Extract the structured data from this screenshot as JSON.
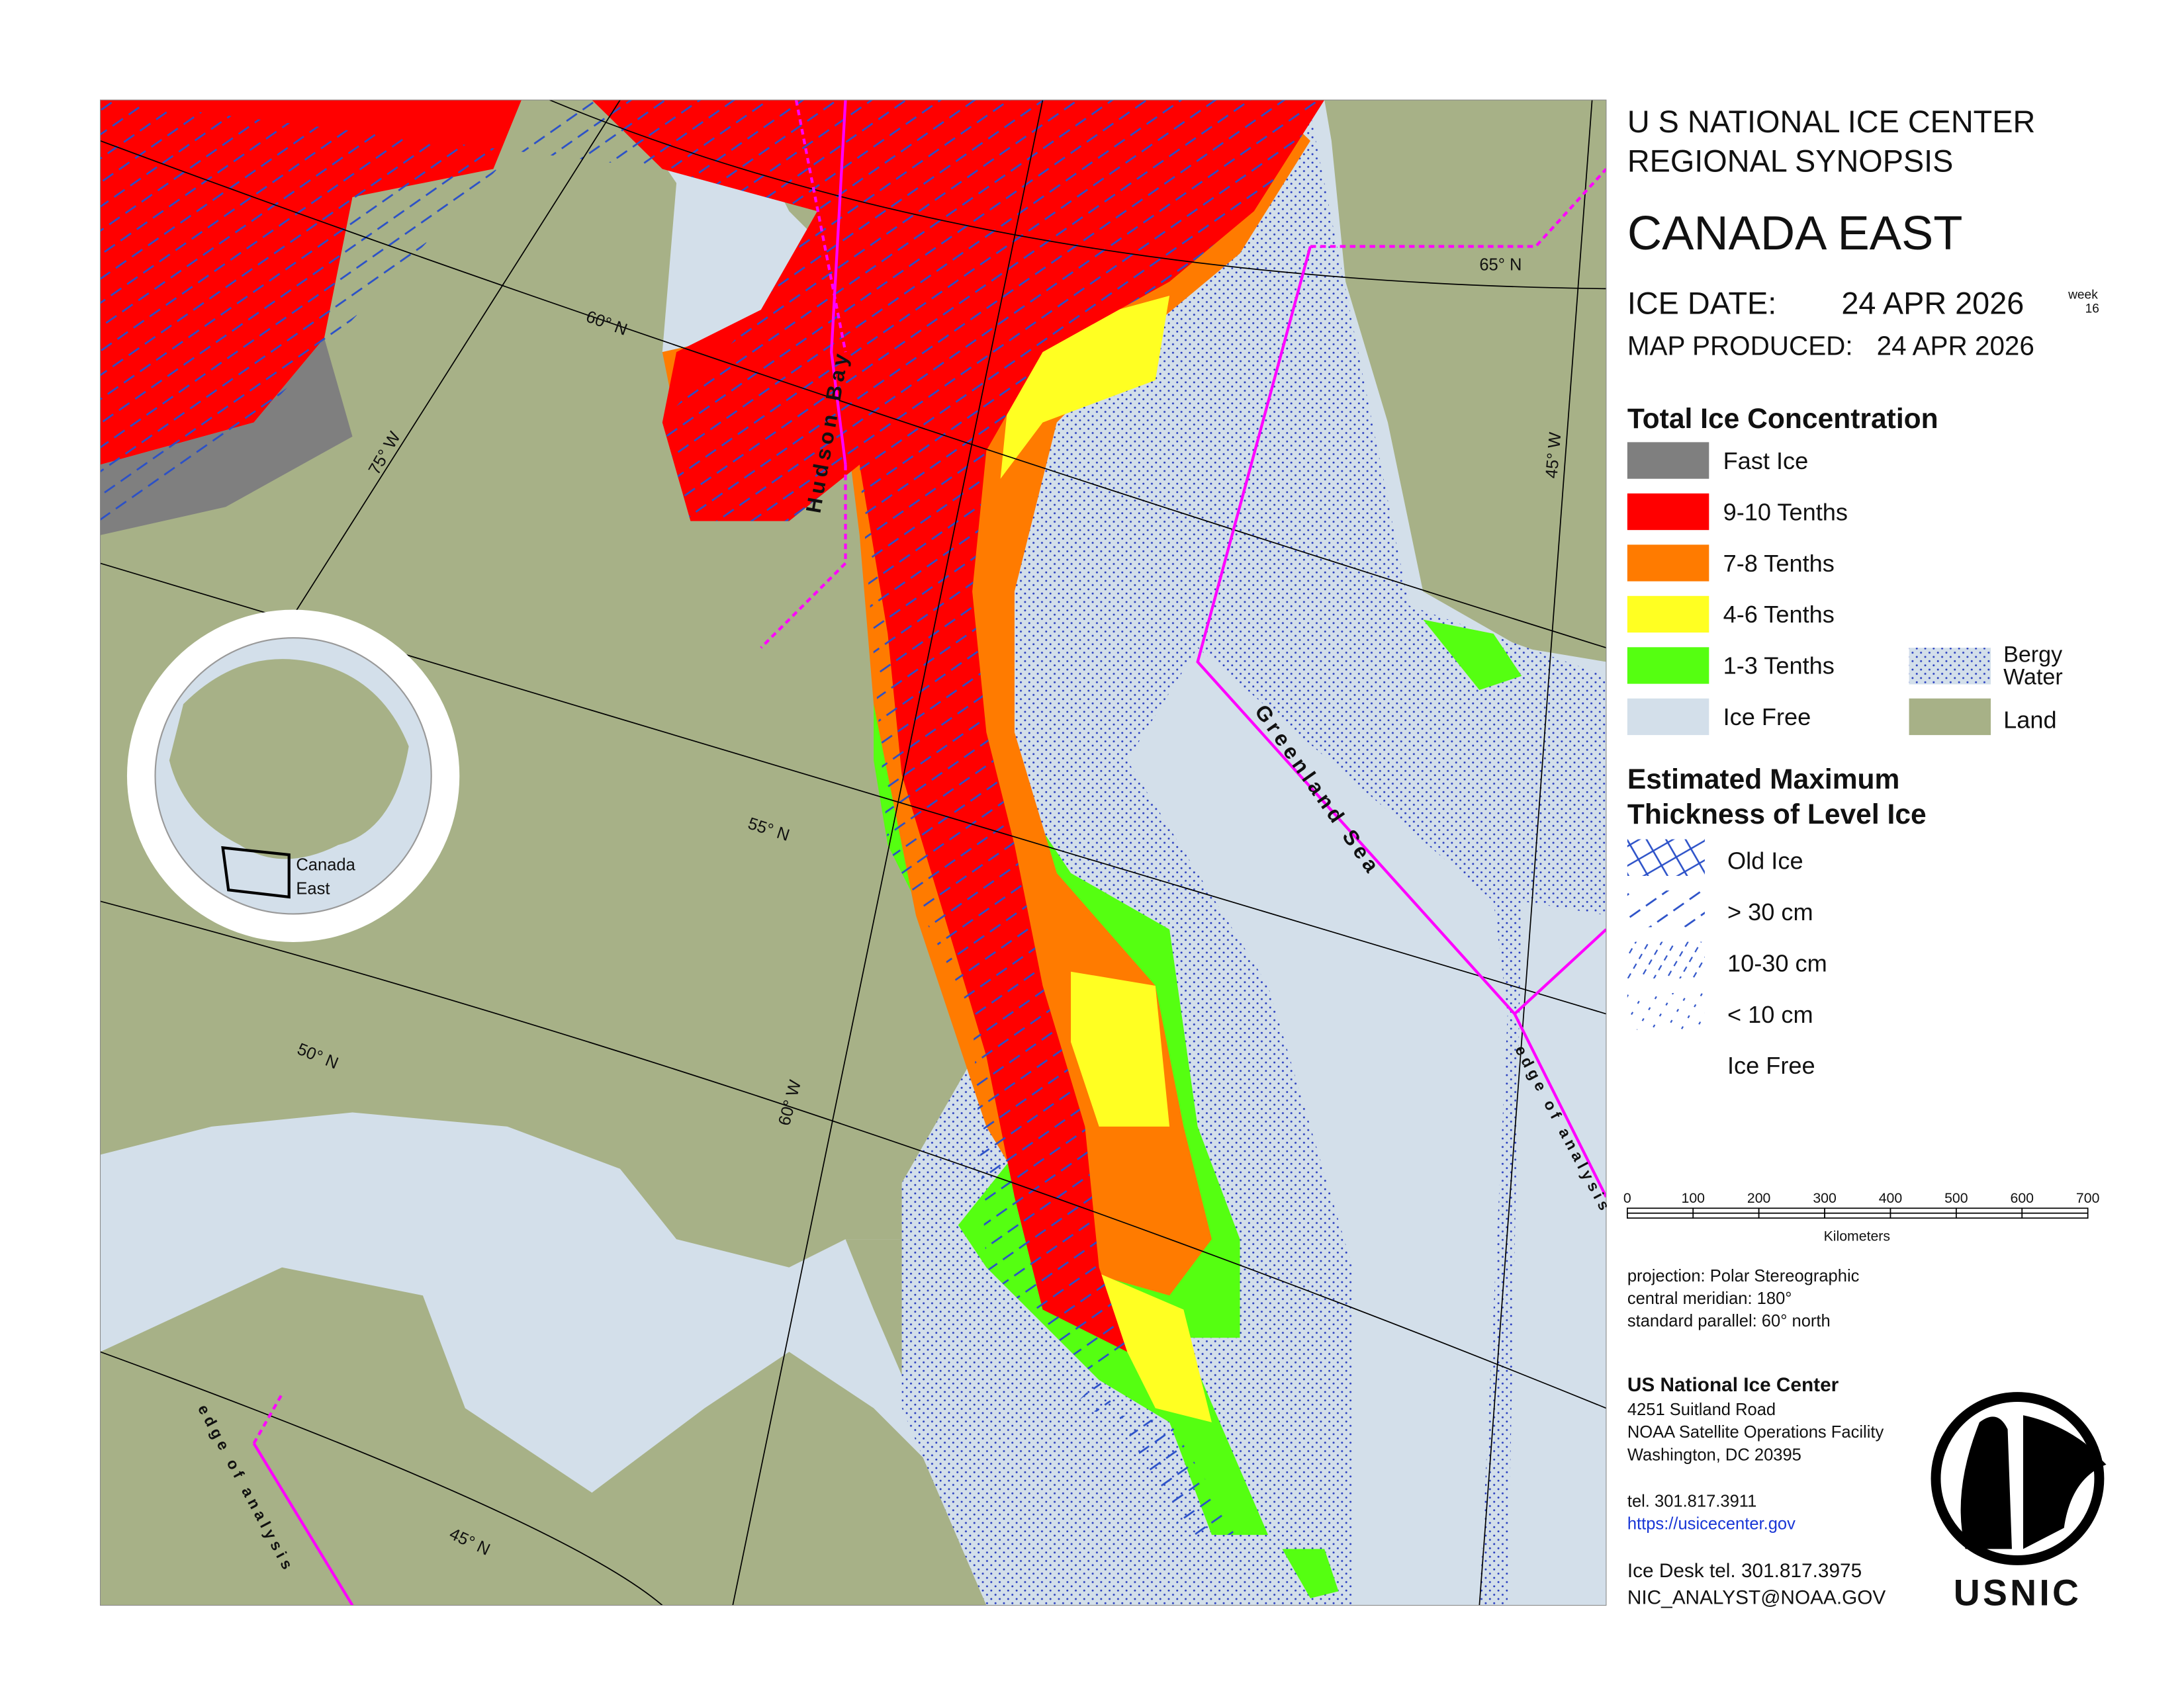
{
  "header": {
    "line1": "U S NATIONAL ICE CENTER",
    "line2": "REGIONAL SYNOPSIS",
    "region": "CANADA EAST",
    "ice_date_label": "ICE DATE:",
    "ice_date": "24 APR 2026",
    "week_label": "week",
    "week": "16",
    "map_produced_label": "MAP PRODUCED:",
    "map_produced": "24 APR 2026"
  },
  "concentration_legend": {
    "title": "Total Ice Concentration",
    "items": [
      "Fast Ice",
      "9-10 Tenths",
      "7-8 Tenths",
      "4-6 Tenths",
      "1-3 Tenths",
      "Ice Free"
    ],
    "bergy": [
      "Bergy",
      "Water"
    ],
    "land": "Land"
  },
  "thickness_legend": {
    "title": [
      "Estimated Maximum",
      "Thickness of Level Ice"
    ],
    "items": [
      "Old Ice",
      "> 30 cm",
      "10-30 cm",
      "< 10 cm",
      "Ice Free"
    ]
  },
  "scale_bar": {
    "ticks": [
      "0",
      "100",
      "200",
      "300",
      "400",
      "500",
      "600",
      "700"
    ],
    "unit": "Kilometers"
  },
  "projection": [
    "projection: Polar Stereographic",
    "central meridian: 180°",
    "standard parallel:  60° north"
  ],
  "contact": {
    "name": "US National Ice Center",
    "address": [
      "4251 Suitland Road",
      "NOAA Satellite Operations Facility",
      "Washington, DC  20395"
    ],
    "tel": "tel. 301.817.3911",
    "url": "https://usicecenter.gov",
    "ice_desk": "Ice Desk tel. 301.817.3975",
    "email": "NIC_ANALYST@NOAA.GOV",
    "logo": "USNIC"
  },
  "map": {
    "labels": {
      "hudson": "Hudson Bay",
      "greenland": "Greenland Sea",
      "edge_right": "edge of analysis",
      "edge_left": "edge of analysis"
    },
    "graticule": {
      "lat": [
        "65° N",
        "60° N",
        "55° N",
        "50° N",
        "45° N"
      ],
      "lon": [
        "75° W",
        "60° W",
        "45° W"
      ]
    },
    "inset": [
      "Canada",
      "East"
    ]
  }
}
